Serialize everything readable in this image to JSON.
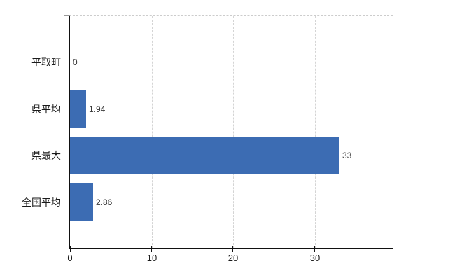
{
  "chart_data": {
    "type": "bar",
    "orientation": "horizontal",
    "title": "",
    "xlabel": "",
    "ylabel": "",
    "categories": [
      "平取町",
      "県平均",
      "県最大",
      "全国平均"
    ],
    "values": [
      0,
      1.94,
      33,
      2.86
    ],
    "data_labels": [
      "0",
      "1.94",
      "33",
      "2.86"
    ],
    "x_ticks": [
      0,
      10,
      20,
      30
    ],
    "x_tick_labels": [
      "0",
      "10",
      "20",
      "30"
    ],
    "xlim": [
      0,
      39.5
    ],
    "grid": true,
    "legend": false,
    "colors": {
      "bar": "#3c6cb3",
      "axis": "#111111",
      "h_gridline": "#d9ded9",
      "v_gridline": "#d4d4d4",
      "top_border_dashed": "#cccccc",
      "category_label": "#1a1a1a",
      "value_label": "#383838",
      "tick_label": "#1a1a1a",
      "background": "#ffffff"
    }
  }
}
